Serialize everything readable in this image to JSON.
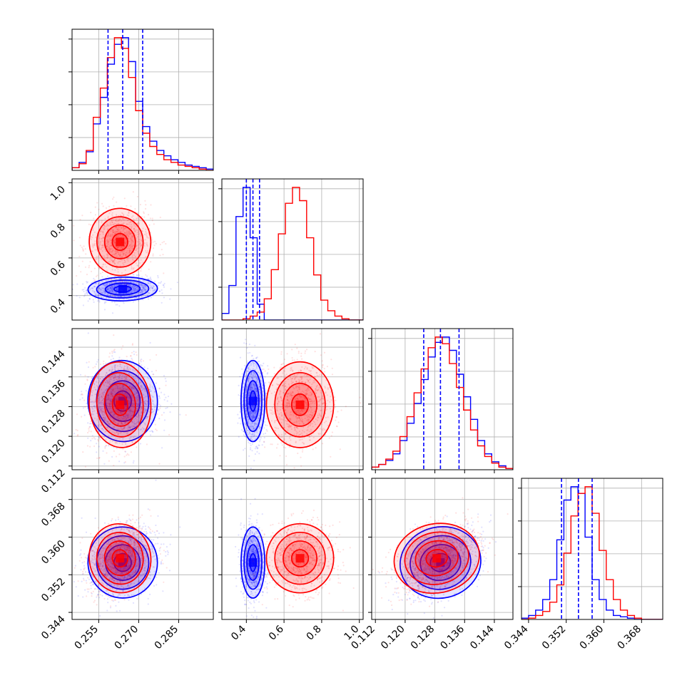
{
  "chart_data": {
    "type": "corner",
    "title": "",
    "parameters": [
      {
        "range": [
          0.245,
          0.298
        ],
        "tick_values": [
          0.255,
          0.27,
          0.285
        ],
        "tick_labels": [
          "0.255",
          "0.270",
          "0.285"
        ]
      },
      {
        "range": [
          0.27,
          1.02
        ],
        "tick_values": [
          0.4,
          0.6,
          0.8,
          1.0
        ],
        "tick_labels": [
          "0.4",
          "0.6",
          "0.8",
          "1.0"
        ]
      },
      {
        "range": [
          0.111,
          0.149
        ],
        "tick_values": [
          0.112,
          0.12,
          0.128,
          0.136,
          0.144
        ],
        "tick_labels": [
          "0.112",
          "0.120",
          "0.128",
          "0.136",
          "0.144"
        ]
      },
      {
        "range": [
          0.3425,
          0.3725
        ],
        "tick_values": [
          0.344,
          0.352,
          0.36,
          0.368
        ],
        "tick_labels": [
          "0.344",
          "0.352",
          "0.360",
          "0.368"
        ]
      }
    ],
    "series": [
      {
        "name": "",
        "color": "#0000ff",
        "means": [
          0.264,
          0.435,
          0.1295,
          0.3546
        ],
        "stds": [
          0.0062,
          0.03,
          0.0052,
          0.0036
        ],
        "quantiles": [
          [
            0.2585,
            0.264,
            0.2715
          ],
          [
            0.4,
            0.435,
            0.47
          ],
          [
            0.125,
            0.1295,
            0.1345
          ],
          [
            0.351,
            0.3546,
            0.3575
          ]
        ],
        "histograms": [
          [
            0.02,
            0.06,
            0.14,
            0.35,
            0.55,
            0.8,
            0.95,
            1.0,
            0.82,
            0.52,
            0.33,
            0.22,
            0.15,
            0.11,
            0.08,
            0.06,
            0.04,
            0.03,
            0.02,
            0.01
          ],
          [
            0.05,
            0.26,
            0.78,
            1.0,
            0.62,
            0.12,
            0.0,
            0.0,
            0.0,
            0.0,
            0.0,
            0.0,
            0.0,
            0.0,
            0.0,
            0.0,
            0.0,
            0.0,
            0.0,
            0.0
          ],
          [
            0.02,
            0.04,
            0.07,
            0.12,
            0.22,
            0.35,
            0.5,
            0.68,
            0.85,
            0.96,
            1.0,
            0.9,
            0.72,
            0.55,
            0.38,
            0.22,
            0.12,
            0.06,
            0.03,
            0.01
          ],
          [
            0.01,
            0.03,
            0.07,
            0.15,
            0.3,
            0.6,
            0.9,
            1.0,
            0.95,
            0.62,
            0.3,
            0.15,
            0.07,
            0.03,
            0.02,
            0.01,
            0.0,
            0.0,
            0.0,
            0.0
          ]
        ],
        "correlations": [
          [
            1,
            0.1,
            0.1,
            0.25
          ],
          [
            0.1,
            1,
            0.0,
            0.0
          ],
          [
            0.1,
            0.0,
            1,
            0.45
          ],
          [
            0.25,
            0.0,
            0.45,
            1
          ]
        ]
      },
      {
        "name": "",
        "color": "#ff0000",
        "means": [
          0.263,
          0.685,
          0.1285,
          0.3555
        ],
        "stds": [
          0.0055,
          0.085,
          0.0055,
          0.0035
        ],
        "quantiles": [
          [
            0.2585,
            0.263,
            0.27
          ],
          [
            0.6,
            0.685,
            0.77
          ],
          [
            0.124,
            0.1285,
            0.133
          ],
          [
            0.352,
            0.3555,
            0.359
          ]
        ],
        "histograms": [
          [
            0.02,
            0.05,
            0.15,
            0.4,
            0.62,
            0.85,
            1.0,
            0.92,
            0.7,
            0.45,
            0.28,
            0.18,
            0.12,
            0.08,
            0.06,
            0.04,
            0.03,
            0.02,
            0.01,
            0.0
          ],
          [
            0.0,
            0.0,
            0.0,
            0.01,
            0.03,
            0.06,
            0.16,
            0.38,
            0.65,
            0.88,
            1.0,
            0.9,
            0.62,
            0.34,
            0.15,
            0.07,
            0.03,
            0.01,
            0.0,
            0.0
          ],
          [
            0.02,
            0.04,
            0.08,
            0.14,
            0.25,
            0.4,
            0.58,
            0.76,
            0.92,
            1.0,
            0.95,
            0.8,
            0.62,
            0.45,
            0.3,
            0.18,
            0.1,
            0.05,
            0.02,
            0.01
          ],
          [
            0.0,
            0.01,
            0.03,
            0.06,
            0.13,
            0.26,
            0.5,
            0.78,
            0.95,
            1.0,
            0.8,
            0.52,
            0.3,
            0.15,
            0.07,
            0.03,
            0.01,
            0.0,
            0.0,
            0.0
          ]
        ],
        "correlations": [
          [
            1,
            0.1,
            0.1,
            0.25
          ],
          [
            0.1,
            1,
            0.0,
            0.0
          ],
          [
            0.1,
            0.0,
            1,
            0.45
          ],
          [
            0.25,
            0.0,
            0.45,
            1
          ]
        ]
      }
    ],
    "grid": true,
    "contour_levels_sigma": [
      0.5,
      1.0,
      1.5,
      2.0
    ]
  }
}
